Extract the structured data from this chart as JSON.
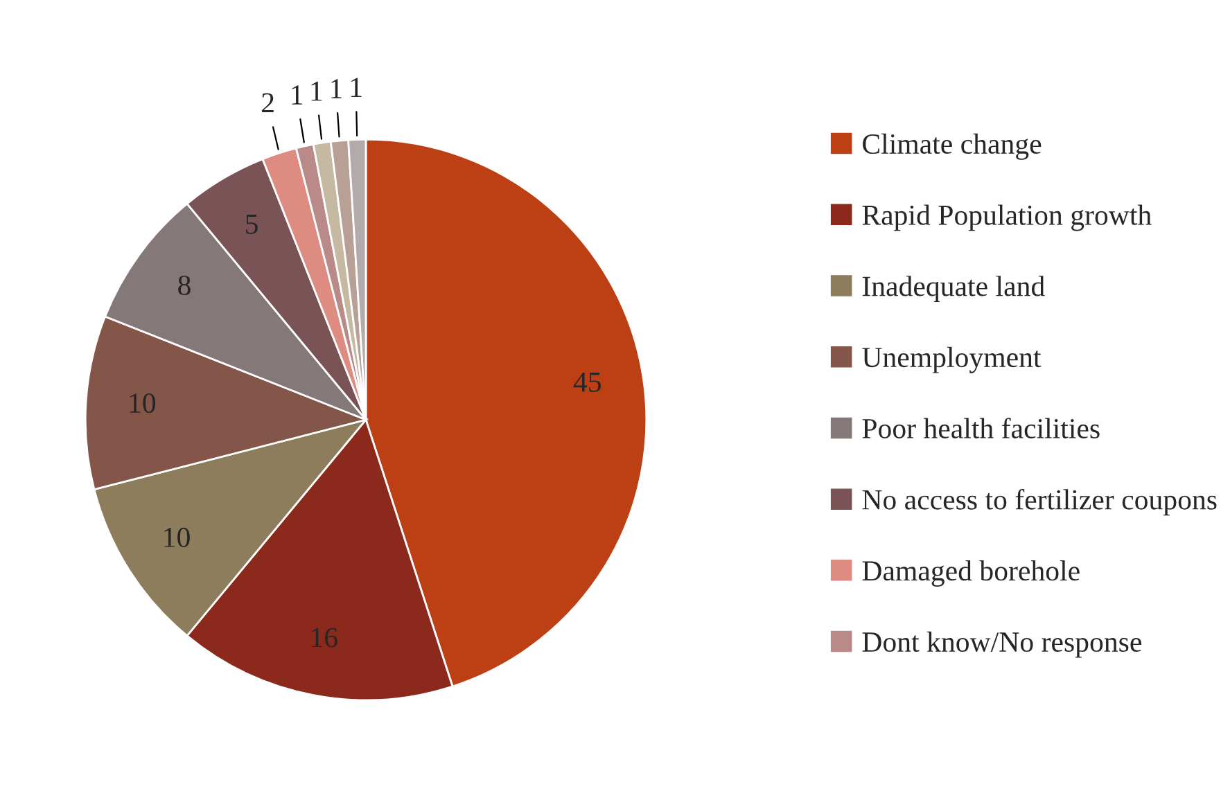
{
  "chart_data": {
    "type": "pie",
    "categories": [
      "Climate change",
      "Rapid Population growth",
      "Inadequate land",
      "Unemployment",
      "Poor health facilities",
      "No access to fertilizer coupons",
      "Damaged borehole",
      "Dont know/No response",
      null,
      null,
      null
    ],
    "values": [
      45,
      16,
      10,
      10,
      8,
      5,
      2,
      1,
      1,
      1,
      1
    ],
    "colors": [
      "#bd4014",
      "#8b2a1c",
      "#8e7d5c",
      "#84564a",
      "#857878",
      "#7a5356",
      "#de8b82",
      "#b98a88",
      "#c6b9a2",
      "#b8a097",
      "#b3abab"
    ],
    "data_labels": true,
    "legend": "right"
  }
}
